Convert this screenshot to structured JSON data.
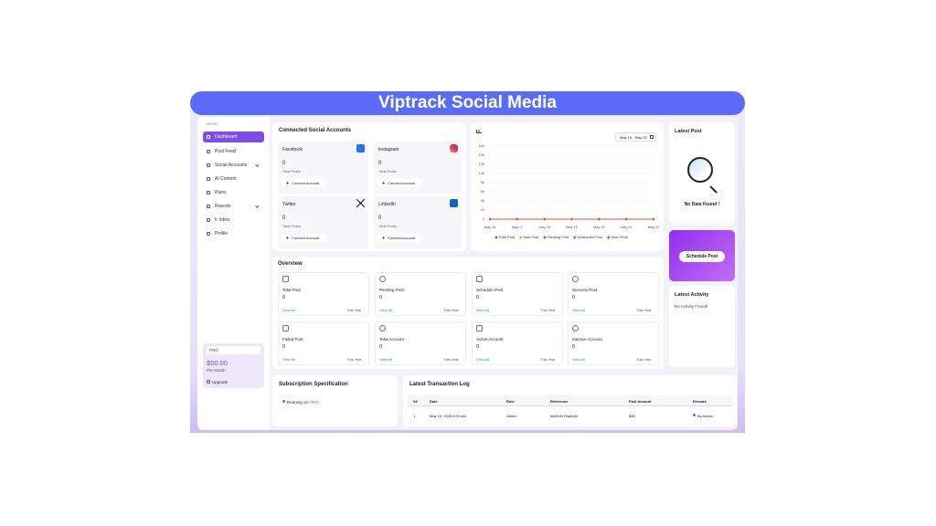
{
  "banner": {
    "title": "Viptrack Social Media"
  },
  "sidebar": {
    "menu_label": "MENU",
    "items": [
      "Dashboard",
      "Post Feed",
      "Social Accounts",
      "AI Content",
      "Plans",
      "Reports",
      "Ir Inbox",
      "Profile"
    ],
    "plan": {
      "name": "PRO",
      "price": "$50.00",
      "period": "Per Month",
      "upgrade": "Upgrade"
    }
  },
  "connected": {
    "title": "Connected Social Accounts",
    "accounts": [
      {
        "name": "Facebook",
        "count": 0,
        "label": "Total Posts",
        "button": "Connect Account"
      },
      {
        "name": "Instagram",
        "count": 0,
        "label": "Total Posts",
        "button": "Connect Account"
      },
      {
        "name": "Twitter",
        "count": 0,
        "label": "Total Posts",
        "button": "Connect Account"
      },
      {
        "name": "LinkedIn",
        "count": 0,
        "label": "Total Posts",
        "button": "Connect Account"
      }
    ]
  },
  "chart_data": {
    "type": "line",
    "date_range": "May 16 - May 22",
    "categories": [
      "May 16",
      "May 17",
      "May 18",
      "May 19",
      "May 20",
      "May 21",
      "May 22"
    ],
    "ylim": [
      0,
      160
    ],
    "yticks": [
      0,
      20,
      40,
      60,
      80,
      100,
      120,
      140,
      160
    ],
    "grid": true,
    "series": [
      {
        "name": "Total Post",
        "color": "#7c5cf0",
        "values": [
          0,
          0,
          0,
          0,
          0,
          0,
          0
        ]
      },
      {
        "name": "Sent Post",
        "color": "#f4b400",
        "values": [
          0,
          0,
          0,
          0,
          0,
          0,
          0
        ]
      },
      {
        "name": "Pending Post",
        "color": "#3b82f6",
        "values": [
          0,
          0,
          0,
          0,
          0,
          0,
          0
        ]
      },
      {
        "name": "Scheduled Post",
        "color": "#14b8a6",
        "values": [
          0,
          0,
          0,
          0,
          0,
          0,
          0
        ]
      },
      {
        "name": "Seen Post",
        "color": "#ef4444",
        "values": [
          0,
          0,
          0,
          0,
          0,
          0,
          0
        ]
      }
    ]
  },
  "latest_post": {
    "title": "Latest Post",
    "empty": "No Data Found !"
  },
  "schedule_button": "Schedule Post",
  "latest_activity": {
    "title": "Latest Activity",
    "empty": "No Activity Found!"
  },
  "overview": {
    "title": "Overview",
    "cards": [
      {
        "name": "Total Post",
        "value": 0,
        "link": "View All",
        "period": "This Year"
      },
      {
        "name": "Pending Post",
        "value": 0,
        "link": "View All",
        "period": "This Year"
      },
      {
        "name": "Schedule Post",
        "value": 0,
        "link": "View All",
        "period": "This Year"
      },
      {
        "name": "Success Post",
        "value": 0,
        "link": "View All",
        "period": "This Year"
      },
      {
        "name": "Failed Post",
        "value": 0,
        "link": "View All",
        "period": "This Year"
      },
      {
        "name": "Total Account",
        "value": 0,
        "link": "View All",
        "period": "This Year"
      },
      {
        "name": "Active Account",
        "value": 0,
        "link": "View All",
        "period": "This Year"
      },
      {
        "name": "Inactive Account",
        "value": 0,
        "link": "View All",
        "period": "This Year"
      }
    ]
  },
  "subscription": {
    "title": "Subscription Specification",
    "running": "Running on:",
    "plan": "PRO"
  },
  "transactions": {
    "title": "Latest Transaction Log",
    "columns": [
      "S#",
      "Date",
      "Role",
      "Reference",
      "Paid Amount",
      "Remark"
    ],
    "rows": [
      [
        "1",
        "May 10, 2025 6:03 am",
        "Admin",
        "#6831fe75adb54",
        "$50",
        "By Admin"
      ]
    ]
  }
}
